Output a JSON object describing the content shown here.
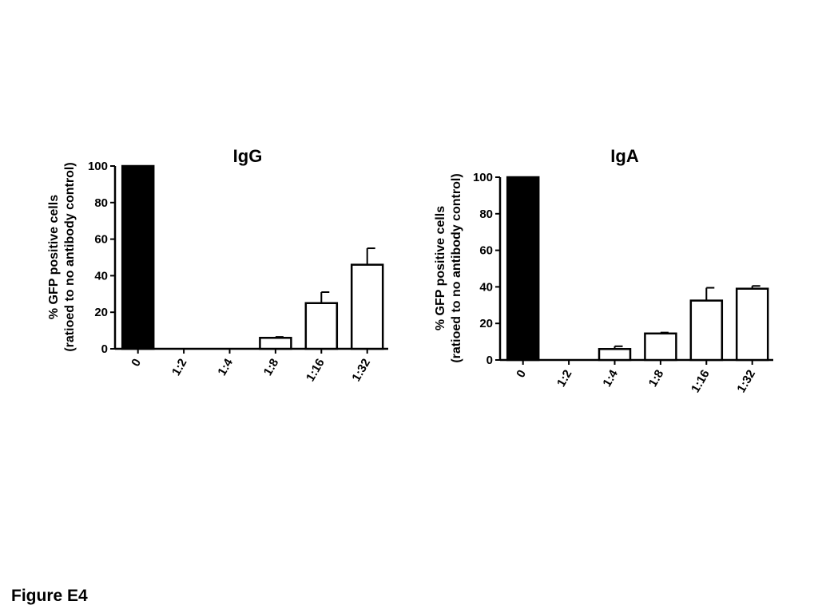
{
  "figure_label": "Figure E4",
  "chart_data": [
    {
      "type": "bar",
      "title": "IgG",
      "ylabel": [
        "% GFP positive cells",
        "(ratioed to no antibody control)"
      ],
      "xlabel": "",
      "ylim": [
        0,
        100
      ],
      "yticks": [
        0,
        20,
        40,
        60,
        80,
        100
      ],
      "categories": [
        "0",
        "1:2",
        "1:4",
        "1:8",
        "1:16",
        "1:32"
      ],
      "values": [
        100,
        0,
        0,
        6,
        25,
        46
      ],
      "errors": [
        0,
        0,
        0,
        0.5,
        6,
        9
      ],
      "fills": [
        "#000000",
        "#ffffff",
        "#ffffff",
        "#ffffff",
        "#ffffff",
        "#ffffff"
      ]
    },
    {
      "type": "bar",
      "title": "IgA",
      "ylabel": [
        "% GFP positive cells",
        "(ratioed to no antibody control)"
      ],
      "xlabel": "",
      "ylim": [
        0,
        100
      ],
      "yticks": [
        0,
        20,
        40,
        60,
        80,
        100
      ],
      "categories": [
        "0",
        "1:2",
        "1:4",
        "1:8",
        "1:16",
        "1:32"
      ],
      "values": [
        100,
        0,
        6,
        14.5,
        32.5,
        39
      ],
      "errors": [
        0,
        0,
        1.5,
        0.5,
        7,
        1.5
      ],
      "fills": [
        "#000000",
        "#ffffff",
        "#ffffff",
        "#ffffff",
        "#ffffff",
        "#ffffff"
      ]
    }
  ]
}
